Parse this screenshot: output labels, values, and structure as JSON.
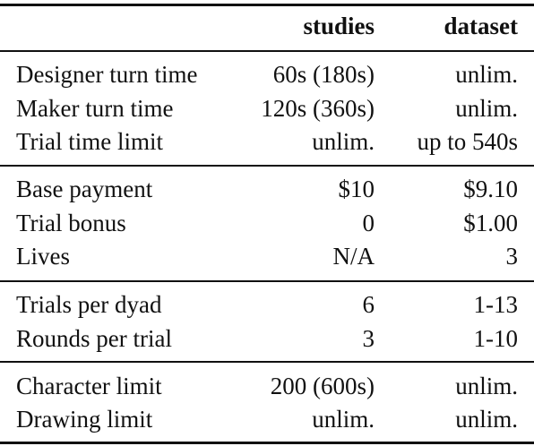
{
  "header": {
    "col_studies": "studies",
    "col_dataset": "dataset"
  },
  "groups": [
    {
      "rows": [
        {
          "label": "Designer turn time",
          "studies": "60s (180s)",
          "dataset": "unlim."
        },
        {
          "label": "Maker turn time",
          "studies": "120s (360s)",
          "dataset": "unlim."
        },
        {
          "label": "Trial time limit",
          "studies": "unlim.",
          "dataset": "up to 540s"
        }
      ]
    },
    {
      "rows": [
        {
          "label": "Base payment",
          "studies": "$10",
          "dataset": "$9.10"
        },
        {
          "label": "Trial bonus",
          "studies": "0",
          "dataset": "$1.00"
        },
        {
          "label": "Lives",
          "studies": "N/A",
          "dataset": "3"
        }
      ]
    },
    {
      "rows": [
        {
          "label": "Trials per dyad",
          "studies": "6",
          "dataset": "1-13"
        },
        {
          "label": "Rounds per trial",
          "studies": "3",
          "dataset": "1-10"
        }
      ]
    },
    {
      "rows": [
        {
          "label": "Character limit",
          "studies": "200 (600s)",
          "dataset": "unlim."
        },
        {
          "label": "Drawing limit",
          "studies": "unlim.",
          "dataset": "unlim."
        }
      ]
    }
  ]
}
